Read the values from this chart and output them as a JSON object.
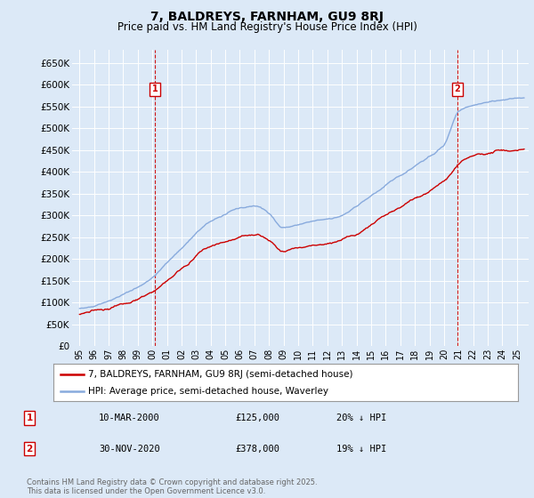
{
  "title": "7, BALDREYS, FARNHAM, GU9 8RJ",
  "subtitle": "Price paid vs. HM Land Registry's House Price Index (HPI)",
  "background_color": "#dce9f7",
  "ylim": [
    0,
    680000
  ],
  "yticks": [
    0,
    50000,
    100000,
    150000,
    200000,
    250000,
    300000,
    350000,
    400000,
    450000,
    500000,
    550000,
    600000,
    650000
  ],
  "ytick_labels": [
    "£0",
    "£50K",
    "£100K",
    "£150K",
    "£200K",
    "£250K",
    "£300K",
    "£350K",
    "£400K",
    "£450K",
    "£500K",
    "£550K",
    "£600K",
    "£650K"
  ],
  "marker1_date": 2000.19,
  "marker1_label": "1",
  "marker1_price": 125000,
  "marker2_date": 2020.92,
  "marker2_label": "2",
  "marker2_price": 378000,
  "legend_line1": "7, BALDREYS, FARNHAM, GU9 8RJ (semi-detached house)",
  "legend_line2": "HPI: Average price, semi-detached house, Waverley",
  "table_row1": [
    "1",
    "10-MAR-2000",
    "£125,000",
    "20% ↓ HPI"
  ],
  "table_row2": [
    "2",
    "30-NOV-2020",
    "£378,000",
    "19% ↓ HPI"
  ],
  "footer": "Contains HM Land Registry data © Crown copyright and database right 2025.\nThis data is licensed under the Open Government Licence v3.0.",
  "line_color_property": "#cc0000",
  "line_color_hpi": "#88aadd",
  "xlim_start": 1994.5,
  "xlim_end": 2025.8
}
